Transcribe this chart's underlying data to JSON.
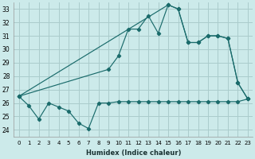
{
  "xlabel": "Humidex (Indice chaleur)",
  "bg_color": "#cceaea",
  "grid_color": "#aacccc",
  "line_color": "#1a6b6b",
  "xlim": [
    -0.5,
    23.5
  ],
  "ylim": [
    23.5,
    33.5
  ],
  "xticks": [
    0,
    1,
    2,
    3,
    4,
    5,
    6,
    7,
    8,
    9,
    10,
    11,
    12,
    13,
    14,
    15,
    16,
    17,
    18,
    19,
    20,
    21,
    22,
    23
  ],
  "yticks": [
    24,
    25,
    26,
    27,
    28,
    29,
    30,
    31,
    32,
    33
  ],
  "series1_x": [
    0,
    1,
    2,
    3,
    4,
    5,
    6,
    7,
    8,
    9,
    10,
    11,
    12,
    13,
    14,
    15,
    16,
    17,
    18,
    19,
    20,
    21,
    22,
    23
  ],
  "series1_y": [
    26.5,
    25.8,
    24.8,
    26.0,
    25.7,
    25.4,
    24.5,
    24.1,
    26.0,
    26.0,
    26.1,
    26.1,
    26.1,
    26.1,
    26.1,
    26.1,
    26.1,
    26.1,
    26.1,
    26.1,
    26.1,
    26.1,
    26.1,
    26.3
  ],
  "series2_x": [
    0,
    15,
    16,
    17,
    18,
    19,
    20,
    21,
    22,
    23
  ],
  "series2_y": [
    26.5,
    33.3,
    33.0,
    30.5,
    30.5,
    31.0,
    31.0,
    30.8,
    27.5,
    26.3
  ],
  "series3_x": [
    0,
    9,
    10,
    11,
    12,
    13,
    14,
    15,
    16,
    17,
    18,
    19,
    20,
    21,
    22,
    23
  ],
  "series3_y": [
    26.5,
    28.5,
    29.5,
    31.5,
    31.5,
    32.5,
    31.2,
    33.3,
    33.0,
    30.5,
    30.5,
    31.0,
    31.0,
    30.8,
    27.5,
    26.3
  ]
}
